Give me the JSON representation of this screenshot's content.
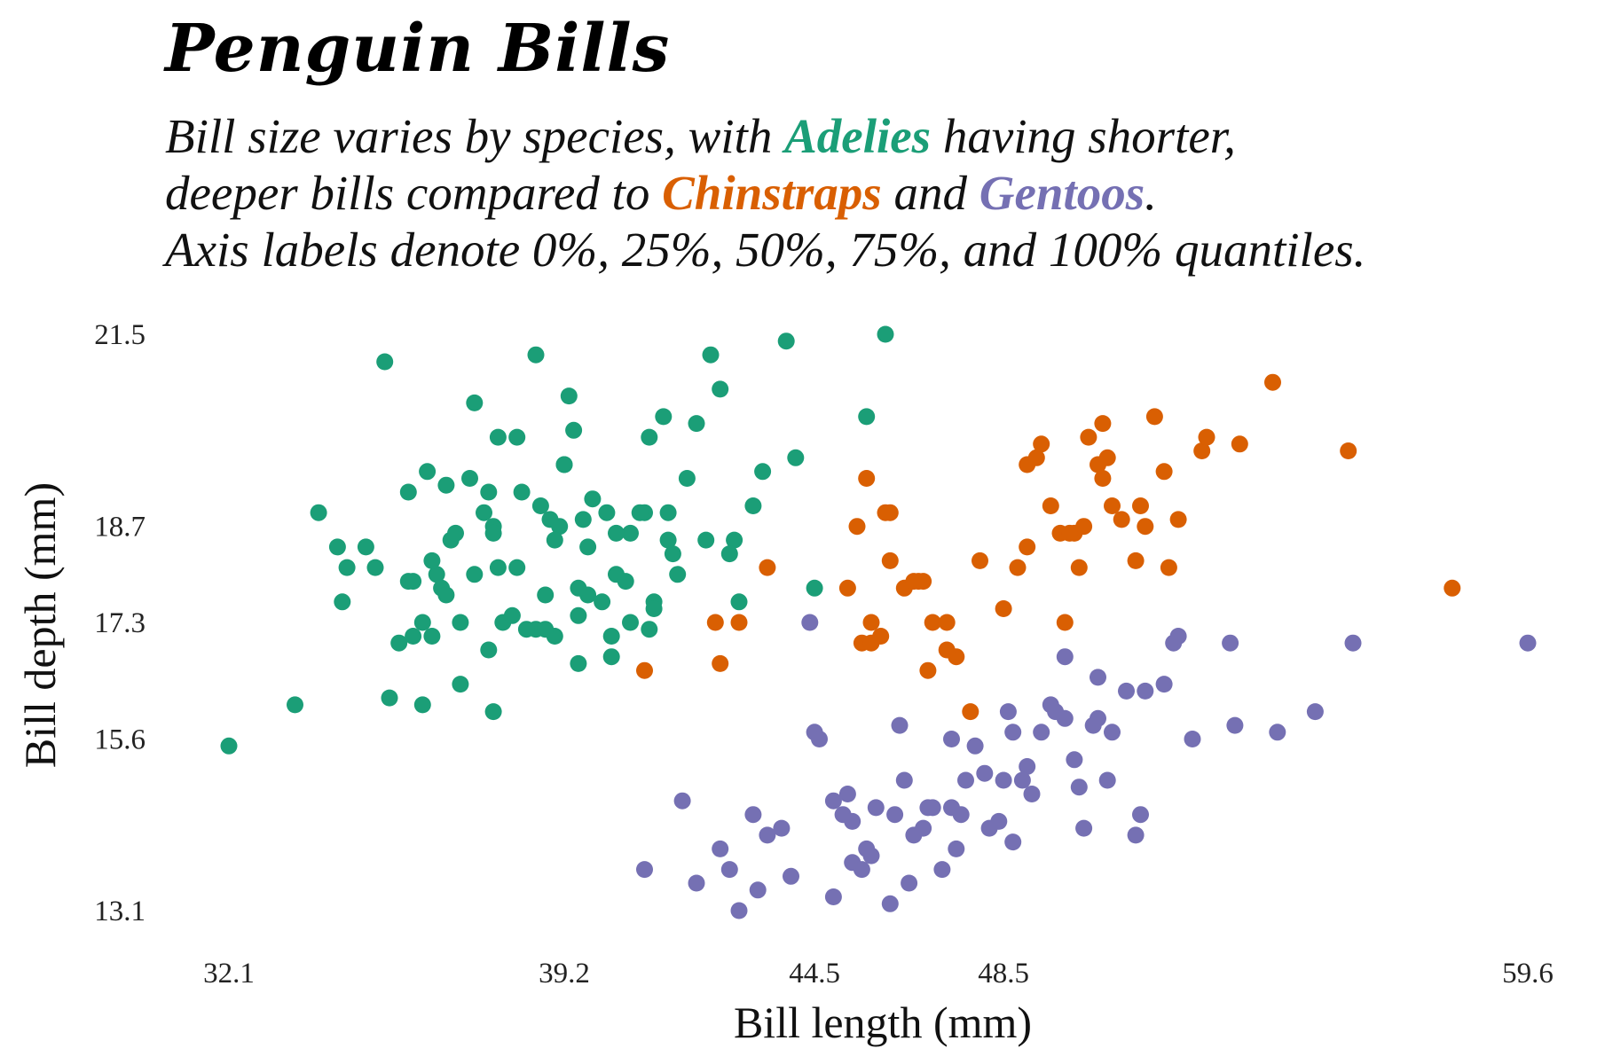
{
  "title": "Penguin Bills",
  "subtitle": {
    "part1": "Bill size varies by species, with ",
    "adelie": "Adelies",
    "part2": " having shorter,",
    "part3": "deeper bills compared to ",
    "chinstrap": "Chinstraps",
    "part4": " and ",
    "gentoo": "Gentoos",
    "part5": ".",
    "line3": "Axis labels denote 0%, 25%, 50%, 75%, and 100% quantiles."
  },
  "colors": {
    "adelie": "#1b9e77",
    "chinstrap": "#d95f02",
    "gentoo": "#7570b3"
  },
  "chart_data": {
    "type": "scatter",
    "xlabel": "Bill length (mm)",
    "ylabel": "Bill depth (mm)",
    "xlim": [
      32.1,
      59.6
    ],
    "ylim": [
      13.1,
      21.5
    ],
    "x_ticks": [
      32.1,
      39.2,
      44.5,
      48.5,
      59.6
    ],
    "y_ticks": [
      13.1,
      15.6,
      17.3,
      18.7,
      21.5
    ],
    "grid": false,
    "legend": "none",
    "series": [
      {
        "name": "Adelies",
        "color": "#1b9e77",
        "points": [
          [
            32.1,
            15.5
          ],
          [
            33.5,
            16.1
          ],
          [
            34.0,
            18.9
          ],
          [
            34.5,
            17.6
          ],
          [
            34.6,
            18.1
          ],
          [
            35.0,
            18.4
          ],
          [
            35.2,
            18.1
          ],
          [
            35.4,
            21.1
          ],
          [
            35.9,
            19.2
          ],
          [
            35.9,
            17.9
          ],
          [
            36.0,
            17.9
          ],
          [
            36.2,
            16.1
          ],
          [
            36.2,
            17.3
          ],
          [
            36.4,
            17.1
          ],
          [
            36.5,
            18.0
          ],
          [
            36.6,
            17.8
          ],
          [
            36.7,
            19.3
          ],
          [
            36.8,
            18.5
          ],
          [
            37.0,
            16.4
          ],
          [
            37.3,
            18.0
          ],
          [
            37.6,
            19.2
          ],
          [
            37.7,
            16.0
          ],
          [
            37.7,
            18.7
          ],
          [
            37.8,
            18.1
          ],
          [
            37.9,
            17.3
          ],
          [
            38.1,
            17.4
          ],
          [
            38.2,
            18.1
          ],
          [
            38.6,
            17.2
          ],
          [
            38.8,
            17.7
          ],
          [
            39.0,
            17.1
          ],
          [
            39.2,
            19.6
          ],
          [
            39.3,
            20.6
          ],
          [
            39.5,
            17.4
          ],
          [
            39.6,
            18.8
          ],
          [
            39.7,
            17.7
          ],
          [
            40.1,
            18.9
          ],
          [
            40.2,
            17.1
          ],
          [
            40.6,
            18.6
          ],
          [
            40.9,
            18.9
          ],
          [
            41.1,
            17.6
          ],
          [
            41.3,
            20.3
          ],
          [
            41.4,
            18.5
          ],
          [
            41.5,
            18.3
          ],
          [
            41.8,
            19.4
          ],
          [
            42.0,
            20.2
          ],
          [
            42.2,
            18.5
          ],
          [
            42.5,
            20.7
          ],
          [
            42.8,
            18.5
          ],
          [
            42.9,
            17.6
          ],
          [
            43.2,
            19.0
          ],
          [
            43.4,
            19.5
          ],
          [
            43.9,
            21.4
          ],
          [
            44.1,
            19.7
          ],
          [
            44.5,
            17.8
          ],
          [
            45.6,
            20.3
          ],
          [
            46.0,
            21.5
          ],
          [
            36.0,
            17.1
          ],
          [
            37.2,
            19.4
          ],
          [
            38.6,
            21.2
          ],
          [
            39.1,
            18.7
          ],
          [
            40.3,
            18.0
          ],
          [
            41.0,
            20.0
          ],
          [
            36.9,
            18.6
          ],
          [
            38.9,
            18.8
          ],
          [
            37.5,
            18.9
          ],
          [
            39.8,
            19.1
          ],
          [
            40.5,
            17.9
          ],
          [
            38.3,
            19.2
          ],
          [
            39.5,
            16.7
          ],
          [
            40.0,
            17.6
          ],
          [
            41.1,
            17.5
          ],
          [
            42.3,
            21.2
          ],
          [
            36.4,
            18.2
          ],
          [
            37.0,
            17.3
          ],
          [
            38.7,
            19.0
          ],
          [
            40.2,
            16.8
          ],
          [
            41.6,
            18.0
          ],
          [
            39.4,
            20.1
          ],
          [
            37.6,
            16.9
          ],
          [
            38.8,
            17.2
          ],
          [
            35.5,
            16.2
          ],
          [
            42.7,
            18.3
          ],
          [
            41.0,
            17.2
          ],
          [
            37.8,
            20.0
          ],
          [
            39.0,
            18.5
          ],
          [
            40.8,
            18.9
          ],
          [
            39.7,
            18.4
          ],
          [
            36.7,
            17.7
          ],
          [
            38.4,
            17.2
          ],
          [
            40.6,
            17.3
          ],
          [
            37.3,
            20.5
          ],
          [
            39.5,
            17.8
          ],
          [
            36.3,
            19.5
          ],
          [
            35.7,
            17.0
          ],
          [
            34.4,
            18.4
          ],
          [
            38.2,
            20.0
          ],
          [
            40.3,
            18.6
          ],
          [
            41.4,
            18.9
          ],
          [
            37.7,
            18.6
          ],
          [
            39.2,
            19.6
          ]
        ]
      },
      {
        "name": "Chinstraps",
        "color": "#d95f02",
        "points": [
          [
            40.9,
            16.6
          ],
          [
            42.4,
            17.3
          ],
          [
            42.5,
            16.7
          ],
          [
            42.9,
            17.3
          ],
          [
            43.5,
            18.1
          ],
          [
            45.2,
            17.8
          ],
          [
            45.4,
            18.7
          ],
          [
            45.5,
            17.0
          ],
          [
            45.7,
            17.3
          ],
          [
            45.9,
            17.1
          ],
          [
            46.0,
            18.9
          ],
          [
            46.1,
            18.2
          ],
          [
            46.4,
            17.8
          ],
          [
            46.6,
            17.9
          ],
          [
            46.8,
            17.9
          ],
          [
            47.0,
            17.3
          ],
          [
            47.5,
            16.8
          ],
          [
            47.8,
            16.0
          ],
          [
            48.0,
            18.2
          ],
          [
            48.5,
            17.5
          ],
          [
            49.0,
            19.6
          ],
          [
            49.2,
            19.7
          ],
          [
            49.3,
            19.9
          ],
          [
            49.5,
            19.0
          ],
          [
            49.7,
            18.6
          ],
          [
            49.8,
            17.3
          ],
          [
            50.0,
            18.6
          ],
          [
            50.2,
            18.7
          ],
          [
            50.3,
            20.0
          ],
          [
            50.5,
            19.6
          ],
          [
            50.6,
            19.4
          ],
          [
            50.7,
            19.7
          ],
          [
            50.8,
            19.0
          ],
          [
            51.0,
            18.8
          ],
          [
            51.3,
            18.2
          ],
          [
            51.4,
            19.0
          ],
          [
            51.5,
            18.7
          ],
          [
            51.7,
            20.3
          ],
          [
            52.0,
            18.1
          ],
          [
            52.2,
            18.8
          ],
          [
            52.7,
            19.8
          ],
          [
            52.8,
            20.0
          ],
          [
            53.5,
            19.9
          ],
          [
            54.2,
            20.8
          ],
          [
            55.8,
            19.8
          ],
          [
            58.0,
            17.8
          ],
          [
            45.6,
            19.4
          ],
          [
            46.9,
            16.6
          ],
          [
            49.0,
            18.4
          ],
          [
            46.1,
            18.9
          ],
          [
            47.3,
            16.9
          ],
          [
            50.6,
            20.2
          ],
          [
            48.8,
            18.1
          ],
          [
            51.9,
            19.5
          ],
          [
            45.7,
            17.0
          ],
          [
            46.7,
            17.9
          ],
          [
            47.3,
            17.3
          ],
          [
            49.9,
            18.6
          ],
          [
            50.1,
            18.1
          ]
        ]
      },
      {
        "name": "Gentoos",
        "color": "#7570b3",
        "points": [
          [
            40.9,
            13.7
          ],
          [
            41.7,
            14.7
          ],
          [
            42.0,
            13.5
          ],
          [
            42.5,
            14.0
          ],
          [
            42.7,
            13.7
          ],
          [
            42.9,
            13.1
          ],
          [
            43.2,
            14.5
          ],
          [
            43.3,
            13.4
          ],
          [
            43.5,
            14.2
          ],
          [
            44.0,
            13.6
          ],
          [
            44.4,
            17.3
          ],
          [
            44.5,
            15.7
          ],
          [
            44.9,
            13.3
          ],
          [
            45.1,
            14.5
          ],
          [
            45.2,
            14.8
          ],
          [
            45.3,
            13.8
          ],
          [
            45.5,
            13.7
          ],
          [
            45.7,
            13.9
          ],
          [
            46.1,
            13.2
          ],
          [
            46.2,
            14.5
          ],
          [
            46.4,
            15.0
          ],
          [
            46.5,
            13.5
          ],
          [
            46.8,
            14.3
          ],
          [
            47.0,
            14.6
          ],
          [
            47.2,
            13.7
          ],
          [
            47.5,
            14.0
          ],
          [
            47.7,
            15.0
          ],
          [
            48.1,
            15.1
          ],
          [
            48.4,
            14.4
          ],
          [
            48.7,
            14.1
          ],
          [
            48.7,
            15.7
          ],
          [
            49.1,
            14.8
          ],
          [
            49.3,
            15.7
          ],
          [
            49.5,
            16.1
          ],
          [
            49.8,
            15.9
          ],
          [
            50.0,
            15.3
          ],
          [
            50.2,
            14.3
          ],
          [
            50.5,
            15.9
          ],
          [
            50.7,
            15.0
          ],
          [
            51.1,
            16.3
          ],
          [
            51.3,
            14.2
          ],
          [
            51.5,
            16.3
          ],
          [
            52.1,
            17.0
          ],
          [
            52.5,
            15.6
          ],
          [
            53.4,
            15.8
          ],
          [
            54.3,
            15.7
          ],
          [
            55.1,
            16.0
          ],
          [
            55.9,
            17.0
          ],
          [
            59.6,
            17.0
          ],
          [
            47.6,
            14.5
          ],
          [
            48.6,
            16.0
          ],
          [
            50.4,
            15.8
          ],
          [
            49.6,
            16.0
          ],
          [
            44.6,
            15.6
          ],
          [
            46.3,
            15.8
          ],
          [
            45.8,
            14.6
          ],
          [
            47.4,
            14.6
          ],
          [
            48.2,
            14.3
          ],
          [
            49.0,
            15.2
          ],
          [
            50.1,
            14.9
          ],
          [
            51.4,
            14.5
          ],
          [
            52.2,
            17.1
          ],
          [
            53.3,
            17.0
          ],
          [
            50.5,
            16.5
          ],
          [
            47.9,
            15.5
          ],
          [
            46.9,
            14.6
          ],
          [
            45.6,
            14.0
          ],
          [
            44.9,
            14.7
          ],
          [
            43.8,
            14.3
          ],
          [
            48.5,
            15.0
          ],
          [
            49.8,
            16.8
          ],
          [
            51.9,
            16.4
          ],
          [
            50.8,
            15.7
          ],
          [
            47.4,
            15.6
          ],
          [
            48.9,
            15.0
          ],
          [
            46.6,
            14.2
          ],
          [
            45.3,
            14.4
          ]
        ]
      }
    ]
  }
}
